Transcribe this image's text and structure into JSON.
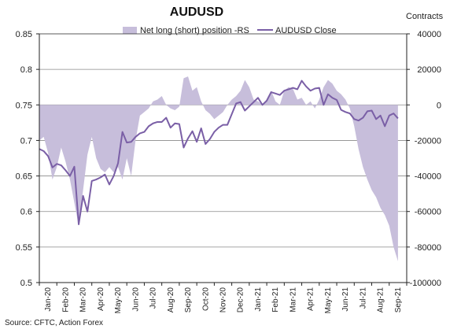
{
  "chart_data": {
    "type": "line",
    "title": "AUDUSD",
    "right_axis_label": "Contracts",
    "source": "Source: CFTC, Action Forex",
    "left_axis": {
      "ylim": [
        0.5,
        0.85
      ],
      "ticks": [
        "0.85",
        "0.8",
        "0.75",
        "0.7",
        "0.65",
        "0.6",
        "0.55",
        "0.5"
      ]
    },
    "right_axis": {
      "ylim": [
        -100000,
        40000
      ],
      "ticks": [
        "40000",
        "20000",
        "0",
        "-20000",
        "-40000",
        "-60000",
        "-80000",
        "-100000"
      ]
    },
    "categories": [
      "Jan-20",
      "Feb-20",
      "Mar-20",
      "Apr-20",
      "May-20",
      "Jun-20",
      "Jul-20",
      "Aug-20",
      "Sep-20",
      "Oct-20",
      "Nov-20",
      "Dec-20",
      "Jan-21",
      "Feb-21",
      "Mar-21",
      "Apr-21",
      "May-21",
      "Jun-21",
      "Jul-21",
      "Aug-21",
      "Sep-21"
    ],
    "grid": "horizontal",
    "legend": "top",
    "colors": {
      "area": "#c7bedb",
      "line": "#7a5fa6",
      "axis": "#222222",
      "grid": "#8a8a8a"
    },
    "series": [
      {
        "name": "Net long (short) position -RS",
        "type": "area",
        "axis": "right",
        "x": [
          0.0,
          0.25,
          0.5,
          0.75,
          1.0,
          1.25,
          1.5,
          1.75,
          2.0,
          2.25,
          2.5,
          2.75,
          3.0,
          3.25,
          3.5,
          3.75,
          4.0,
          4.25,
          4.5,
          4.75,
          5.0,
          5.25,
          5.5,
          5.75,
          6.0,
          6.25,
          6.5,
          6.75,
          7.0,
          7.25,
          7.5,
          7.75,
          8.0,
          8.25,
          8.5,
          8.75,
          9.0,
          9.25,
          9.5,
          9.75,
          10.0,
          10.25,
          10.5,
          10.75,
          11.0,
          11.25,
          11.5,
          11.75,
          12.0,
          12.25,
          12.5,
          12.75,
          13.0,
          13.25,
          13.5,
          13.75,
          14.0,
          14.25,
          14.5,
          14.75,
          15.0,
          15.25,
          15.5,
          15.75,
          16.0,
          16.25,
          16.5,
          16.75,
          17.0,
          17.25,
          17.5,
          17.75,
          18.0,
          18.25,
          18.5,
          18.75,
          19.0,
          19.25,
          19.5,
          19.75,
          20.0,
          20.25,
          20.5
        ],
        "values": [
          -20000,
          -18000,
          -27000,
          -42000,
          -35000,
          -24000,
          -32000,
          -42000,
          -55000,
          -68000,
          -48000,
          -28000,
          -18000,
          -30000,
          -36000,
          -38000,
          -35000,
          -38000,
          -35000,
          -42000,
          -30000,
          -40000,
          -20000,
          -6000,
          -4000,
          -2000,
          2000,
          3000,
          5000,
          0,
          -2000,
          -3000,
          -1000,
          15000,
          16000,
          8000,
          10000,
          2000,
          -3000,
          -5000,
          -8000,
          -6000,
          -4000,
          0,
          3000,
          5000,
          8000,
          14000,
          10000,
          3000,
          2000,
          0,
          3000,
          8000,
          2000,
          0,
          8000,
          10000,
          9000,
          3000,
          4000,
          0,
          2000,
          -2000,
          3000,
          10000,
          14000,
          12000,
          8000,
          6000,
          3000,
          -2000,
          -12000,
          -25000,
          -35000,
          -42000,
          -48000,
          -52000,
          -58000,
          -62000,
          -68000,
          -80000,
          -88000
        ]
      },
      {
        "name": "AUDUSD Close",
        "type": "line",
        "axis": "left",
        "x": [
          0.0,
          0.25,
          0.5,
          0.75,
          1.0,
          1.25,
          1.5,
          1.75,
          2.0,
          2.25,
          2.5,
          2.75,
          3.0,
          3.25,
          3.5,
          3.75,
          4.0,
          4.25,
          4.5,
          4.75,
          5.0,
          5.25,
          5.5,
          5.75,
          6.0,
          6.25,
          6.5,
          6.75,
          7.0,
          7.25,
          7.5,
          7.75,
          8.0,
          8.25,
          8.5,
          8.75,
          9.0,
          9.25,
          9.5,
          9.75,
          10.0,
          10.25,
          10.5,
          10.75,
          11.0,
          11.25,
          11.5,
          11.75,
          12.0,
          12.25,
          12.5,
          12.75,
          13.0,
          13.25,
          13.5,
          13.75,
          14.0,
          14.25,
          14.5,
          14.75,
          15.0,
          15.25,
          15.5,
          15.75,
          16.0,
          16.25,
          16.5,
          16.75,
          17.0,
          17.25,
          17.5,
          17.75,
          18.0,
          18.25,
          18.5,
          18.75,
          19.0,
          19.25,
          19.5,
          19.75,
          20.0,
          20.25,
          20.5
        ],
        "values": [
          0.688,
          0.685,
          0.678,
          0.662,
          0.667,
          0.665,
          0.658,
          0.65,
          0.663,
          0.582,
          0.622,
          0.6,
          0.643,
          0.645,
          0.648,
          0.652,
          0.638,
          0.65,
          0.668,
          0.712,
          0.697,
          0.698,
          0.705,
          0.71,
          0.712,
          0.72,
          0.724,
          0.726,
          0.726,
          0.732,
          0.718,
          0.724,
          0.723,
          0.69,
          0.703,
          0.713,
          0.698,
          0.717,
          0.695,
          0.702,
          0.712,
          0.718,
          0.722,
          0.722,
          0.737,
          0.752,
          0.754,
          0.742,
          0.748,
          0.754,
          0.76,
          0.75,
          0.756,
          0.768,
          0.766,
          0.764,
          0.77,
          0.772,
          0.774,
          0.772,
          0.784,
          0.776,
          0.77,
          0.773,
          0.774,
          0.75,
          0.765,
          0.76,
          0.757,
          0.743,
          0.74,
          0.738,
          0.73,
          0.728,
          0.732,
          0.741,
          0.742,
          0.73,
          0.735,
          0.72,
          0.735,
          0.738,
          0.731
        ]
      }
    ]
  }
}
